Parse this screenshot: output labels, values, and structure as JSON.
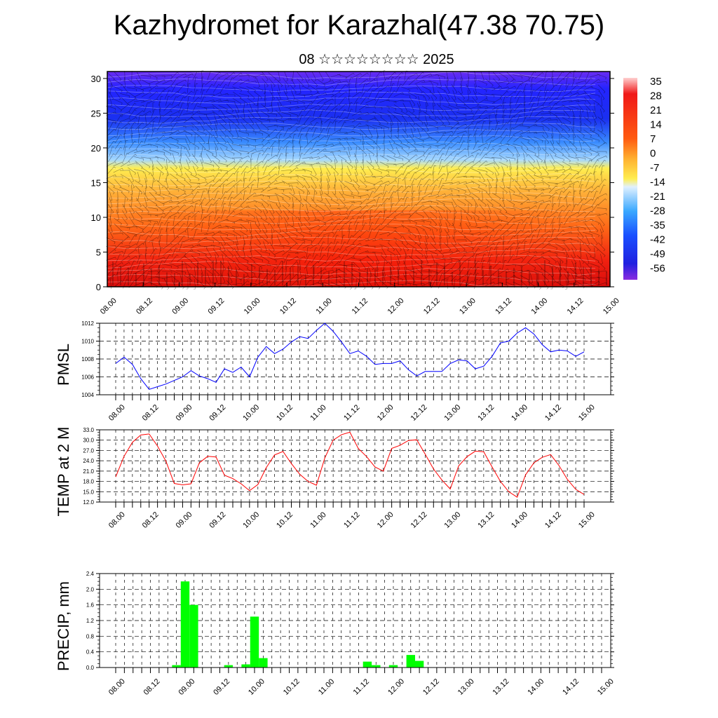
{
  "title": "Kazhydromet for Karazhal(47.38 70.75)",
  "subtitle": "08 ☆☆☆☆☆☆☆☆ 2025",
  "chart_data": [
    {
      "type": "heatmap",
      "title": "",
      "xlabel": "",
      "ylabel": "",
      "x_tick_labels": [
        "08.00",
        "08.12",
        "09.00",
        "09.12",
        "10.00",
        "10.12",
        "11.00",
        "11.12",
        "12.00",
        "12.12",
        "13.00",
        "13.12",
        "14.00",
        "14.12",
        "15.00"
      ],
      "y_ticks": [
        0,
        5,
        10,
        15,
        20,
        25,
        30
      ],
      "ylim": [
        0,
        31
      ],
      "colorbar_labels": [
        "35",
        "28",
        "21",
        "14",
        "7",
        "0",
        "-7",
        "-14",
        "-21",
        "-28",
        "-35",
        "-42",
        "-49",
        "-56"
      ],
      "colors": [
        "#2020ff",
        "#30a0ff",
        "#ffee50",
        "#ff9020",
        "#f01010"
      ]
    },
    {
      "type": "line",
      "ylabel": "PMSL",
      "ylim": [
        1004,
        1012
      ],
      "y_ticks": [
        "1004",
        "1006",
        "1008",
        "1010",
        "1012"
      ],
      "x_tick_labels": [
        "08.00",
        "08.12",
        "09.00",
        "09.12",
        "10.00",
        "10.12",
        "11.00",
        "11.12",
        "12.00",
        "12.12",
        "13.00",
        "13.12",
        "14.00",
        "14.12",
        "15.00"
      ],
      "color": "#0000ff",
      "values": [
        1007.5,
        1008.2,
        1007.4,
        1005.8,
        1004.6,
        1004.9,
        1005.2,
        1005.6,
        1006.0,
        1006.7,
        1006.1,
        1005.8,
        1005.4,
        1006.9,
        1006.5,
        1007.1,
        1006.0,
        1008.2,
        1009.4,
        1008.6,
        1009.1,
        1009.9,
        1010.5,
        1010.3,
        1011.2,
        1012.0,
        1011.1,
        1009.9,
        1008.6,
        1008.9,
        1008.3,
        1007.4,
        1007.5,
        1007.5,
        1007.8,
        1006.8,
        1006.1,
        1006.6,
        1006.6,
        1006.6,
        1007.5,
        1007.9,
        1007.8,
        1006.9,
        1007.2,
        1008.3,
        1009.8,
        1010.0,
        1010.9,
        1011.5,
        1010.8,
        1009.6,
        1008.8,
        1009.0,
        1008.9,
        1008.3,
        1008.8
      ]
    },
    {
      "type": "line",
      "ylabel": "TEMP at 2 M",
      "ylim": [
        12,
        33
      ],
      "y_ticks": [
        "12.0",
        "15.0",
        "18.0",
        "21.0",
        "24.0",
        "27.0",
        "30.0",
        "33.0"
      ],
      "x_tick_labels": [
        "08.00",
        "08.12",
        "09.00",
        "09.12",
        "10.00",
        "10.12",
        "11.00",
        "11.12",
        "12.00",
        "12.12",
        "13.00",
        "13.12",
        "14.00",
        "14.12",
        "15.00"
      ],
      "color": "#ff0000",
      "values": [
        19.3,
        25.3,
        29.4,
        31.5,
        31.8,
        28.3,
        23.9,
        17.4,
        17.0,
        17.3,
        23.4,
        25.3,
        25.1,
        19.8,
        18.8,
        17.3,
        15.3,
        17.1,
        22.0,
        25.7,
        26.7,
        23.2,
        20.1,
        18.0,
        16.9,
        24.8,
        30.0,
        31.6,
        32.3,
        27.6,
        25.2,
        22.2,
        21.0,
        27.6,
        28.5,
        29.9,
        30.1,
        25.9,
        21.6,
        18.4,
        15.8,
        22.5,
        25.2,
        26.8,
        26.6,
        22.2,
        18.0,
        15.0,
        13.4,
        19.9,
        23.4,
        25.0,
        25.8,
        22.6,
        18.6,
        15.7,
        14.2
      ]
    },
    {
      "type": "bar",
      "ylabel": "PRECIP, mm",
      "ylim": [
        0,
        2.4
      ],
      "y_ticks": [
        "0.0",
        "0.4",
        "0.8",
        "1.2",
        "1.6",
        "2.0",
        "2.4"
      ],
      "x_tick_labels": [
        "08.00",
        "08.12",
        "09.00",
        "09.12",
        "10.00",
        "10.12",
        "11.00",
        "11.12",
        "12.00",
        "12.12",
        "13.00",
        "13.12",
        "14.00",
        "14.12",
        "15.00"
      ],
      "color": "#00ff00",
      "bars": [
        {
          "x": 7,
          "value": 0.06
        },
        {
          "x": 8,
          "value": 2.2
        },
        {
          "x": 9,
          "value": 1.6
        },
        {
          "x": 13,
          "value": 0.06
        },
        {
          "x": 15,
          "value": 0.08
        },
        {
          "x": 16,
          "value": 1.3
        },
        {
          "x": 17,
          "value": 0.24
        },
        {
          "x": 29,
          "value": 0.15
        },
        {
          "x": 30,
          "value": 0.06
        },
        {
          "x": 32,
          "value": 0.06
        },
        {
          "x": 34,
          "value": 0.32
        },
        {
          "x": 35,
          "value": 0.17
        }
      ]
    }
  ]
}
